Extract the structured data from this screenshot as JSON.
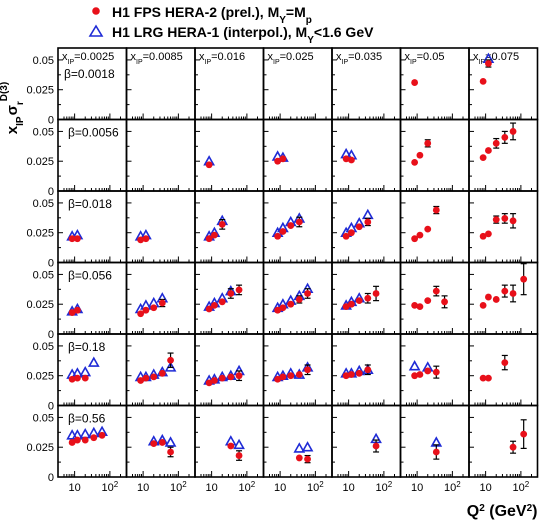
{
  "chart_data": {
    "type": "scatter",
    "legend": [
      {
        "name": "H1 FPS HERA-2 (prel.),  M",
        "sub": "Y",
        "tail": "=M",
        "sub2": "p",
        "marker": "circle",
        "color": "#e8101a"
      },
      {
        "name": "H1 LRG HERA-1 (interpol.),  M",
        "sub": "Y",
        "tail": "<1.6 GeV",
        "sub2": "",
        "marker": "triangle",
        "color": "#1f2bd6"
      }
    ],
    "ylabel": {
      "main": "x",
      "sub1": "IP",
      "sigma": "σ",
      "sub2": "r",
      "sup": "D(3)"
    },
    "xlabel": "Q² (GeV²)",
    "xscale": "log",
    "xlim": [
      5,
      200
    ],
    "ylim": [
      0,
      0.06
    ],
    "yticks": [
      "0.05",
      "0.025",
      "0"
    ],
    "xticks": [
      "10",
      "10²"
    ],
    "xIP_label": "x",
    "xIP_sub": "IP",
    "xIP": [
      "=0.0025",
      "=0.0085",
      "=0.016",
      "=0.025",
      "=0.035",
      "=0.05",
      "=0.075"
    ],
    "beta": [
      "β=0.0018",
      "β=0.0056",
      "β=0.018",
      "β=0.056",
      "β=0.18",
      "β=0.56"
    ],
    "colors": {
      "fps": "#e8101a",
      "lrg": "#1f2bd6"
    },
    "cells": [
      {
        "row": 0,
        "col": 5,
        "fps": [
          [
            8.5,
            0.031,
            0
          ]
        ],
        "lrg": []
      },
      {
        "row": 0,
        "col": 6,
        "fps": [
          [
            8.5,
            0.032,
            0
          ],
          [
            12,
            0.047,
            0.003
          ]
        ],
        "lrg": [
          [
            12,
            0.051
          ]
        ]
      },
      {
        "row": 1,
        "col": 2,
        "fps": [
          [
            8.5,
            0.022,
            0
          ]
        ],
        "lrg": [
          [
            8.5,
            0.025
          ]
        ]
      },
      {
        "row": 1,
        "col": 3,
        "fps": [
          [
            8.5,
            0.025,
            0
          ],
          [
            12,
            0.027,
            0
          ]
        ],
        "lrg": [
          [
            8.5,
            0.029
          ],
          [
            12,
            0.028
          ]
        ]
      },
      {
        "row": 1,
        "col": 4,
        "fps": [
          [
            8.5,
            0.027,
            0
          ],
          [
            12,
            0.026,
            0
          ]
        ],
        "lrg": [
          [
            8.5,
            0.031
          ],
          [
            12,
            0.03
          ]
        ]
      },
      {
        "row": 1,
        "col": 5,
        "fps": [
          [
            8.5,
            0.024,
            0
          ],
          [
            12,
            0.03,
            0
          ],
          [
            20,
            0.04,
            0.003
          ]
        ],
        "lrg": []
      },
      {
        "row": 1,
        "col": 6,
        "fps": [
          [
            8.5,
            0.028,
            0
          ],
          [
            12,
            0.034,
            0
          ],
          [
            20,
            0.04,
            0.004
          ],
          [
            35,
            0.045,
            0.005
          ],
          [
            60,
            0.05,
            0.007
          ]
        ],
        "lrg": []
      },
      {
        "row": 2,
        "col": 0,
        "fps": [
          [
            8.5,
            0.02,
            0
          ],
          [
            12,
            0.02,
            0
          ]
        ],
        "lrg": [
          [
            8.5,
            0.022
          ],
          [
            12,
            0.023
          ]
        ]
      },
      {
        "row": 2,
        "col": 1,
        "fps": [
          [
            8.5,
            0.019,
            0
          ],
          [
            12,
            0.02,
            0
          ]
        ],
        "lrg": [
          [
            8.5,
            0.022
          ],
          [
            12,
            0.023
          ]
        ]
      },
      {
        "row": 2,
        "col": 2,
        "fps": [
          [
            8.5,
            0.02,
            0
          ],
          [
            12,
            0.023,
            0
          ],
          [
            20,
            0.032,
            0.004
          ]
        ],
        "lrg": [
          [
            8.5,
            0.022
          ],
          [
            12,
            0.025
          ],
          [
            20,
            0.035
          ]
        ]
      },
      {
        "row": 2,
        "col": 3,
        "fps": [
          [
            8.5,
            0.022,
            0
          ],
          [
            12,
            0.026,
            0
          ],
          [
            20,
            0.031,
            0
          ],
          [
            35,
            0.034,
            0.004
          ]
        ],
        "lrg": [
          [
            8.5,
            0.025
          ],
          [
            12,
            0.029
          ],
          [
            20,
            0.034
          ],
          [
            35,
            0.037
          ]
        ]
      },
      {
        "row": 2,
        "col": 4,
        "fps": [
          [
            8.5,
            0.022,
            0
          ],
          [
            12,
            0.025,
            0
          ],
          [
            20,
            0.03,
            0
          ],
          [
            35,
            0.034,
            0.003
          ]
        ],
        "lrg": [
          [
            8.5,
            0.025
          ],
          [
            12,
            0.029
          ],
          [
            20,
            0.033
          ],
          [
            35,
            0.04
          ]
        ]
      },
      {
        "row": 2,
        "col": 5,
        "fps": [
          [
            8.5,
            0.02,
            0
          ],
          [
            12,
            0.023,
            0
          ],
          [
            20,
            0.028,
            0
          ],
          [
            35,
            0.044,
            0.003
          ]
        ],
        "lrg": []
      },
      {
        "row": 2,
        "col": 6,
        "fps": [
          [
            8.5,
            0.022,
            0
          ],
          [
            12,
            0.024,
            0
          ],
          [
            20,
            0.036,
            0.003
          ],
          [
            35,
            0.037,
            0.004
          ],
          [
            60,
            0.035,
            0.006
          ]
        ],
        "lrg": []
      },
      {
        "row": 3,
        "col": 0,
        "fps": [
          [
            8.5,
            0.018,
            0
          ],
          [
            12,
            0.02,
            0
          ]
        ],
        "lrg": [
          [
            8.5,
            0.019
          ],
          [
            12,
            0.021
          ]
        ]
      },
      {
        "row": 3,
        "col": 1,
        "fps": [
          [
            8.5,
            0.017,
            0
          ],
          [
            12,
            0.02,
            0
          ],
          [
            20,
            0.022,
            0
          ],
          [
            35,
            0.026,
            0.003
          ]
        ],
        "lrg": [
          [
            8.5,
            0.021
          ],
          [
            12,
            0.024
          ],
          [
            20,
            0.026
          ],
          [
            35,
            0.03
          ]
        ]
      },
      {
        "row": 3,
        "col": 2,
        "fps": [
          [
            8.5,
            0.021,
            0
          ],
          [
            12,
            0.024,
            0
          ],
          [
            20,
            0.027,
            0
          ],
          [
            35,
            0.034,
            0.004
          ],
          [
            60,
            0.037,
            0.004
          ]
        ],
        "lrg": [
          [
            8.5,
            0.023
          ],
          [
            12,
            0.026
          ],
          [
            20,
            0.03
          ],
          [
            35,
            0.036
          ]
        ]
      },
      {
        "row": 3,
        "col": 3,
        "fps": [
          [
            8.5,
            0.02,
            0
          ],
          [
            12,
            0.022,
            0
          ],
          [
            20,
            0.025,
            0
          ],
          [
            35,
            0.029,
            0.003
          ],
          [
            60,
            0.034,
            0.004
          ]
        ],
        "lrg": [
          [
            8.5,
            0.022
          ],
          [
            12,
            0.025
          ],
          [
            20,
            0.028
          ],
          [
            35,
            0.032
          ],
          [
            60,
            0.038
          ]
        ]
      },
      {
        "row": 3,
        "col": 4,
        "fps": [
          [
            8.5,
            0.023,
            0
          ],
          [
            12,
            0.025,
            0
          ],
          [
            20,
            0.028,
            0
          ],
          [
            35,
            0.03,
            0.004
          ],
          [
            60,
            0.034,
            0.006
          ]
        ],
        "lrg": [
          [
            8.5,
            0.024
          ],
          [
            12,
            0.027
          ],
          [
            20,
            0.03
          ]
        ]
      },
      {
        "row": 3,
        "col": 5,
        "fps": [
          [
            8.5,
            0.024,
            0
          ],
          [
            12,
            0.023,
            0
          ],
          [
            20,
            0.028,
            0
          ],
          [
            35,
            0.036,
            0.004
          ],
          [
            60,
            0.027,
            0.005
          ]
        ],
        "lrg": []
      },
      {
        "row": 3,
        "col": 6,
        "fps": [
          [
            8.5,
            0.024,
            0
          ],
          [
            12,
            0.031,
            0
          ],
          [
            20,
            0.029,
            0
          ],
          [
            35,
            0.036,
            0.005
          ],
          [
            60,
            0.034,
            0.007
          ],
          [
            120,
            0.046,
            0.013
          ]
        ],
        "lrg": []
      },
      {
        "row": 4,
        "col": 0,
        "fps": [
          [
            8.5,
            0.022,
            0
          ],
          [
            12,
            0.023,
            0
          ],
          [
            20,
            0.023,
            0
          ]
        ],
        "lrg": [
          [
            8.5,
            0.026
          ],
          [
            12,
            0.027
          ],
          [
            20,
            0.028
          ],
          [
            35,
            0.036
          ]
        ]
      },
      {
        "row": 4,
        "col": 1,
        "fps": [
          [
            8.5,
            0.021,
            0
          ],
          [
            12,
            0.023,
            0
          ],
          [
            20,
            0.024,
            0
          ],
          [
            35,
            0.027,
            0
          ],
          [
            60,
            0.038,
            0.006
          ]
        ],
        "lrg": [
          [
            8.5,
            0.024
          ],
          [
            12,
            0.024
          ],
          [
            20,
            0.026
          ],
          [
            35,
            0.028
          ],
          [
            60,
            0.032
          ]
        ]
      },
      {
        "row": 4,
        "col": 2,
        "fps": [
          [
            8.5,
            0.019,
            0
          ],
          [
            12,
            0.021,
            0
          ],
          [
            20,
            0.023,
            0
          ],
          [
            35,
            0.024,
            0
          ],
          [
            60,
            0.025,
            0.004
          ]
        ],
        "lrg": [
          [
            8.5,
            0.021
          ],
          [
            12,
            0.022
          ],
          [
            20,
            0.024
          ],
          [
            35,
            0.025
          ],
          [
            60,
            0.029
          ]
        ]
      },
      {
        "row": 4,
        "col": 3,
        "fps": [
          [
            8.5,
            0.022,
            0
          ],
          [
            12,
            0.024,
            0
          ],
          [
            20,
            0.025,
            0
          ],
          [
            35,
            0.026,
            0
          ],
          [
            60,
            0.03,
            0.004
          ]
        ],
        "lrg": [
          [
            8.5,
            0.024
          ],
          [
            12,
            0.025
          ],
          [
            20,
            0.027
          ],
          [
            35,
            0.026
          ],
          [
            60,
            0.032
          ]
        ]
      },
      {
        "row": 4,
        "col": 4,
        "fps": [
          [
            8.5,
            0.025,
            0
          ],
          [
            12,
            0.026,
            0
          ],
          [
            20,
            0.027,
            0
          ],
          [
            35,
            0.03,
            0.004
          ]
        ],
        "lrg": [
          [
            8.5,
            0.027
          ],
          [
            12,
            0.027
          ],
          [
            20,
            0.029
          ],
          [
            35,
            0.03
          ]
        ]
      },
      {
        "row": 4,
        "col": 5,
        "fps": [
          [
            8.5,
            0.025,
            0
          ],
          [
            12,
            0.026,
            0
          ],
          [
            20,
            0.029,
            0
          ],
          [
            35,
            0.028,
            0.005
          ]
        ],
        "lrg": [
          [
            8.5,
            0.033
          ],
          [
            20,
            0.032
          ]
        ]
      },
      {
        "row": 4,
        "col": 6,
        "fps": [
          [
            8.5,
            0.023,
            0
          ],
          [
            12,
            0.023,
            0
          ],
          [
            35,
            0.036,
            0.006
          ]
        ],
        "lrg": []
      },
      {
        "row": 5,
        "col": 0,
        "fps": [
          [
            8.5,
            0.029,
            0
          ],
          [
            12,
            0.031,
            0
          ],
          [
            20,
            0.031,
            0
          ],
          [
            35,
            0.033,
            0
          ],
          [
            60,
            0.035,
            0
          ]
        ],
        "lrg": [
          [
            8.5,
            0.035
          ],
          [
            12,
            0.035
          ],
          [
            20,
            0.036
          ],
          [
            35,
            0.037
          ],
          [
            60,
            0.038
          ]
        ]
      },
      {
        "row": 5,
        "col": 1,
        "fps": [
          [
            20,
            0.028,
            0
          ],
          [
            35,
            0.029,
            0
          ],
          [
            60,
            0.021,
            0.004
          ]
        ],
        "lrg": [
          [
            20,
            0.03
          ],
          [
            35,
            0.031
          ],
          [
            60,
            0.029
          ]
        ]
      },
      {
        "row": 5,
        "col": 2,
        "fps": [
          [
            35,
            0.026,
            0
          ],
          [
            60,
            0.018,
            0.004
          ]
        ],
        "lrg": [
          [
            35,
            0.03
          ],
          [
            60,
            0.027
          ]
        ]
      },
      {
        "row": 5,
        "col": 3,
        "fps": [
          [
            35,
            0.016,
            0
          ],
          [
            60,
            0.015,
            0.003
          ]
        ],
        "lrg": [
          [
            35,
            0.024
          ],
          [
            60,
            0.025
          ]
        ]
      },
      {
        "row": 5,
        "col": 4,
        "fps": [
          [
            60,
            0.026,
            0.005
          ]
        ],
        "lrg": [
          [
            60,
            0.032
          ]
        ]
      },
      {
        "row": 5,
        "col": 5,
        "fps": [
          [
            35,
            0.021,
            0.006
          ]
        ],
        "lrg": [
          [
            35,
            0.029
          ]
        ]
      },
      {
        "row": 5,
        "col": 6,
        "fps": [
          [
            60,
            0.025,
            0.005
          ]
        ],
        "lrg": []
      }
    ],
    "row7_extra": {
      "row": 5,
      "col": 6,
      "fps": [
        [
          120,
          0.036,
          0.012
        ]
      ]
    }
  }
}
